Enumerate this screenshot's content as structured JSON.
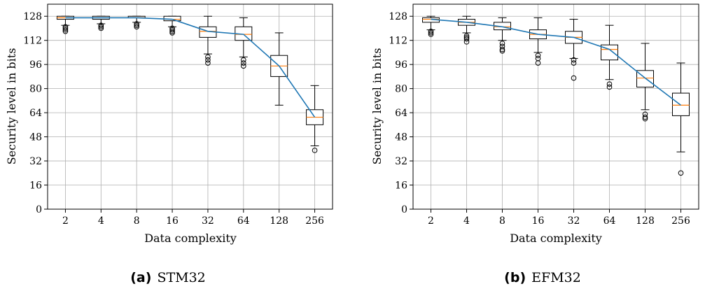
{
  "chart_data": [
    {
      "type": "box",
      "caption": {
        "letter": "(a)",
        "text": "STM32"
      },
      "xlabel": "Data complexity",
      "ylabel": "Security level in bits",
      "ylim": [
        0,
        136
      ],
      "yticks": [
        0,
        16,
        32,
        48,
        64,
        80,
        96,
        112,
        128
      ],
      "categories": [
        "2",
        "4",
        "8",
        "16",
        "32",
        "64",
        "128",
        "256"
      ],
      "grid": true,
      "median_line_color": "#1f77b4",
      "median_color": "#ff7f0e",
      "boxes": [
        {
          "whisker_low": 122,
          "q1": 126,
          "median": 127,
          "q3": 128,
          "whisker_high": 128,
          "outliers": [
            121,
            120,
            119,
            118
          ]
        },
        {
          "whisker_low": 123,
          "q1": 126,
          "median": 127,
          "q3": 128,
          "whisker_high": 128,
          "outliers": [
            122,
            121,
            120
          ]
        },
        {
          "whisker_low": 124,
          "q1": 127,
          "median": 127,
          "q3": 128,
          "whisker_high": 128,
          "outliers": [
            123,
            122,
            121
          ]
        },
        {
          "whisker_low": 121,
          "q1": 125,
          "median": 126,
          "q3": 128,
          "whisker_high": 128,
          "outliers": [
            120,
            119,
            118,
            117
          ]
        },
        {
          "whisker_low": 103,
          "q1": 114,
          "median": 118,
          "q3": 121,
          "whisker_high": 128,
          "outliers": [
            101,
            99,
            97
          ]
        },
        {
          "whisker_low": 101,
          "q1": 112,
          "median": 116,
          "q3": 121,
          "whisker_high": 127,
          "outliers": [
            99,
            97,
            95
          ]
        },
        {
          "whisker_low": 69,
          "q1": 88,
          "median": 95,
          "q3": 102,
          "whisker_high": 117,
          "outliers": []
        },
        {
          "whisker_low": 42,
          "q1": 56,
          "median": 61,
          "q3": 66,
          "whisker_high": 82,
          "outliers": [
            39
          ]
        }
      ]
    },
    {
      "type": "box",
      "caption": {
        "letter": "(b)",
        "text": "EFM32"
      },
      "xlabel": "Data complexity",
      "ylabel": "Security level in bits",
      "ylim": [
        0,
        136
      ],
      "yticks": [
        0,
        16,
        32,
        48,
        64,
        80,
        96,
        112,
        128
      ],
      "categories": [
        "2",
        "4",
        "8",
        "16",
        "32",
        "64",
        "128",
        "256"
      ],
      "grid": true,
      "median_line_color": "#1f77b4",
      "median_color": "#ff7f0e",
      "boxes": [
        {
          "whisker_low": 119,
          "q1": 124,
          "median": 126,
          "q3": 127,
          "whisker_high": 128,
          "outliers": [
            118,
            117,
            116
          ]
        },
        {
          "whisker_low": 117,
          "q1": 122,
          "median": 124,
          "q3": 126,
          "whisker_high": 128,
          "outliers": [
            115,
            114,
            113,
            111
          ]
        },
        {
          "whisker_low": 112,
          "q1": 119,
          "median": 121,
          "q3": 124,
          "whisker_high": 127,
          "outliers": [
            110,
            108,
            106,
            105
          ]
        },
        {
          "whisker_low": 104,
          "q1": 113,
          "median": 116,
          "q3": 119,
          "whisker_high": 127,
          "outliers": [
            102,
            100,
            97
          ]
        },
        {
          "whisker_low": 100,
          "q1": 110,
          "median": 114,
          "q3": 118,
          "whisker_high": 126,
          "outliers": [
            99,
            97,
            87
          ]
        },
        {
          "whisker_low": 86,
          "q1": 99,
          "median": 106,
          "q3": 109,
          "whisker_high": 122,
          "outliers": [
            83,
            81
          ]
        },
        {
          "whisker_low": 66,
          "q1": 81,
          "median": 87,
          "q3": 92,
          "whisker_high": 110,
          "outliers": [
            63,
            61,
            60
          ]
        },
        {
          "whisker_low": 38,
          "q1": 62,
          "median": 69,
          "q3": 77,
          "whisker_high": 97,
          "outliers": [
            24
          ]
        }
      ]
    }
  ]
}
